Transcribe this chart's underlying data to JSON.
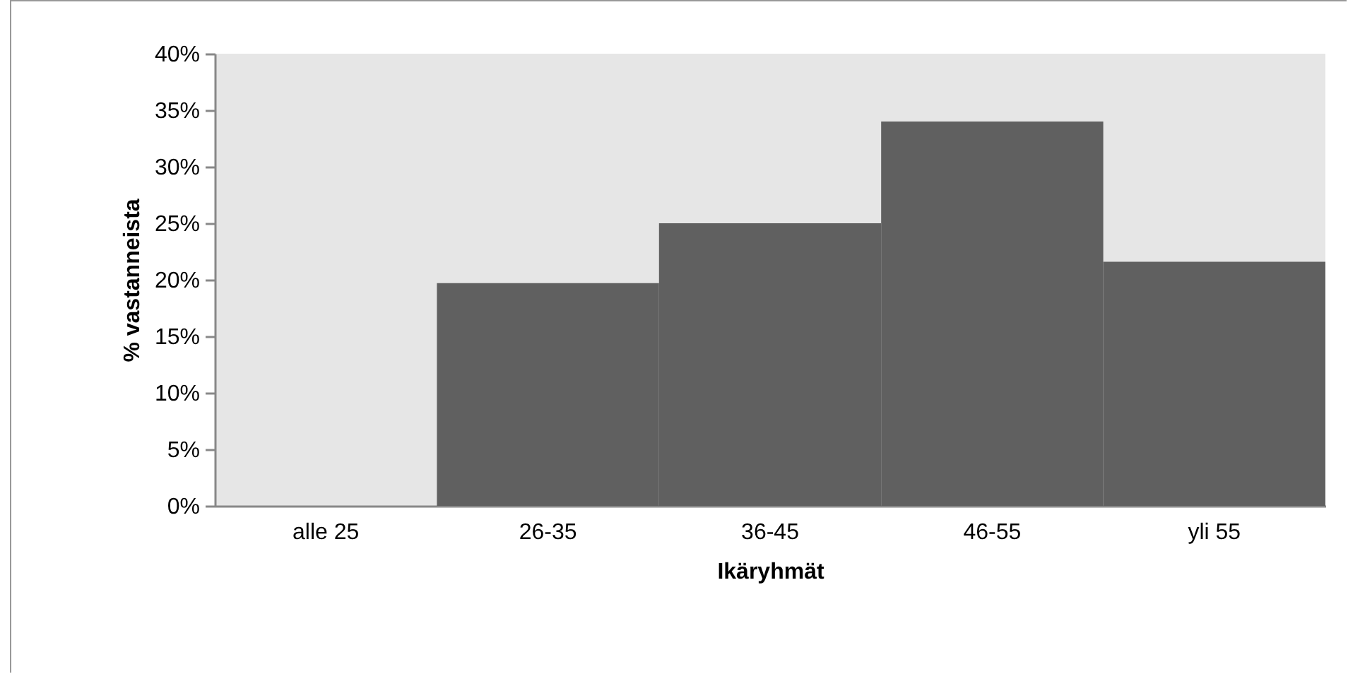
{
  "chart_data": {
    "type": "bar",
    "xlabel": "Ikäryhmät",
    "ylabel": "% vastanneista",
    "categories": [
      "alle 25",
      "26-35",
      "36-45",
      "46-55",
      "yli 55"
    ],
    "values": [
      0,
      19.7,
      25,
      34,
      21.6
    ],
    "color": "#606060",
    "ylim": [
      0,
      40
    ],
    "yticks": [
      {
        "value": 0,
        "label": "0%"
      },
      {
        "value": 5,
        "label": "5%"
      },
      {
        "value": 10,
        "label": "10%"
      },
      {
        "value": 15,
        "label": "15%"
      },
      {
        "value": 20,
        "label": "20%"
      },
      {
        "value": 25,
        "label": "25%"
      },
      {
        "value": 30,
        "label": "30%"
      },
      {
        "value": 35,
        "label": "35%"
      },
      {
        "value": 40,
        "label": "40%"
      }
    ],
    "grid": false
  }
}
